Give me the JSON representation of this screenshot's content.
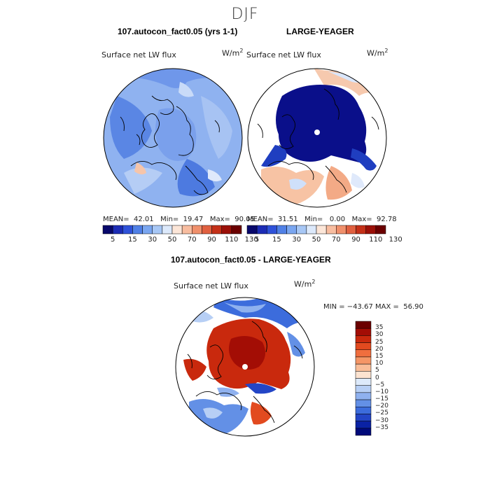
{
  "figure": {
    "title": "DJF"
  },
  "colorbar_top": {
    "colors": [
      "#08086b",
      "#1c2cb5",
      "#2f52d9",
      "#5080e6",
      "#7aa6f0",
      "#a7c7f5",
      "#dce9fb",
      "#fce6d8",
      "#f8bda0",
      "#f0906c",
      "#e06040",
      "#c43018",
      "#9b1008",
      "#6b0000"
    ],
    "tick_labels": [
      "5",
      "15",
      "30",
      "50",
      "70",
      "90",
      "110",
      "130"
    ]
  },
  "colorbar_diff": {
    "colors": [
      "#6b0000",
      "#a30d05",
      "#c9290d",
      "#e24a1f",
      "#f06e3e",
      "#f59666",
      "#f9bd98",
      "#fce3d0",
      "#ddeafb",
      "#b7cff5",
      "#8fb1ef",
      "#6390e6",
      "#3c6cdc",
      "#2345c6",
      "#0a22a4",
      "#000a7a"
    ],
    "tick_labels": [
      "35",
      "30",
      "25",
      "20",
      "15",
      "10",
      "5",
      "0",
      "−5",
      "−10",
      "−15",
      "−20",
      "−25",
      "−30",
      "−35"
    ]
  },
  "panels": {
    "top_left": {
      "title": "107.autocon_fact0.05 (yrs 1-1)",
      "variable": "Surface net LW flux",
      "units": "W/m",
      "units_exp": "2",
      "stats": "MEAN=  42.01   Min=  19.47   Max=  90.05"
    },
    "top_right": {
      "title": "LARGE-YEAGER",
      "variable": "Surface net LW flux",
      "units": "W/m",
      "units_exp": "2",
      "stats": "MEAN=  31.51   Min=   0.00   Max=  92.78"
    },
    "bottom": {
      "title": "107.autocon_fact0.05 - LARGE-YEAGER",
      "variable": "Surface net LW flux",
      "units": "W/m",
      "units_exp": "2",
      "stats": "MIN = −43.67 MAX =  56.90"
    }
  }
}
